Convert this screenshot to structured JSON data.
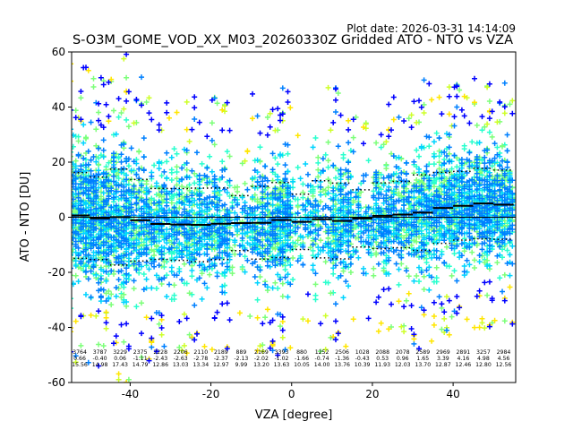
{
  "chart_data": {
    "type": "scatter",
    "title": "S-O3M_GOME_VOD_XX_M03_20260330Z Gridded ATO - NTO vs VZA",
    "subtitle": "Plot date: 2026-03-31 14:14:09",
    "xlabel": "VZA [degree]",
    "ylabel": "ATO - NTO [DU]",
    "xlim": [
      -54.5,
      55.5
    ],
    "ylim": [
      -60,
      60
    ],
    "xticks": [
      -40,
      -20,
      0,
      20,
      40
    ],
    "yticks": [
      -60,
      -40,
      -20,
      0,
      20,
      40,
      60
    ],
    "bin_width": 5,
    "bin_centers": [
      -52.5,
      -47.5,
      -42.5,
      -37.5,
      -32.5,
      -27.5,
      -22.5,
      -17.5,
      -12.5,
      -7.5,
      -2.5,
      2.5,
      7.5,
      12.5,
      17.5,
      22.5,
      27.5,
      32.5,
      37.5,
      42.5,
      47.5,
      52.5
    ],
    "bins": {
      "counts": [
        "3764",
        "3787",
        "3229",
        "2375",
        "2228",
        "2206",
        "2110",
        "2189",
        "889",
        "2169",
        "3393",
        "880",
        "1252",
        "2506",
        "1028",
        "2088",
        "2078",
        "2589",
        "2969",
        "2891",
        "3257",
        "2984"
      ],
      "means": [
        "0.66",
        "-0.40",
        "0.06",
        "-1.11",
        "-2.43",
        "-2.63",
        "-2.78",
        "-2.37",
        "-2.13",
        "-2.02",
        "-1.02",
        "-1.66",
        "-0.74",
        "-1.36",
        "-0.43",
        "0.53",
        "0.96",
        "1.65",
        "3.39",
        "4.16",
        "4.98",
        "4.56"
      ],
      "stds": [
        "15.56",
        "14.98",
        "17.43",
        "14.79",
        "12.86",
        "13.03",
        "13.34",
        "12.97",
        "9.99",
        "13.20",
        "13.63",
        "10.05",
        "14.00",
        "13.76",
        "10.39",
        "11.93",
        "12.03",
        "13.70",
        "12.87",
        "12.46",
        "12.80",
        "12.56"
      ]
    },
    "series": [
      {
        "name": "gridded points",
        "marker": "+",
        "colors": [
          "#0000ff",
          "#0080ff",
          "#00d4ff",
          "#29ffce",
          "#7dff7a",
          "#ceff29",
          "#ffe600"
        ]
      },
      {
        "name": "bin mean",
        "style": "solid",
        "color": "#000000"
      },
      {
        "name": "mean ± std",
        "style": "dotted",
        "color": "#000000"
      }
    ],
    "grid": false,
    "zero_line": true
  }
}
